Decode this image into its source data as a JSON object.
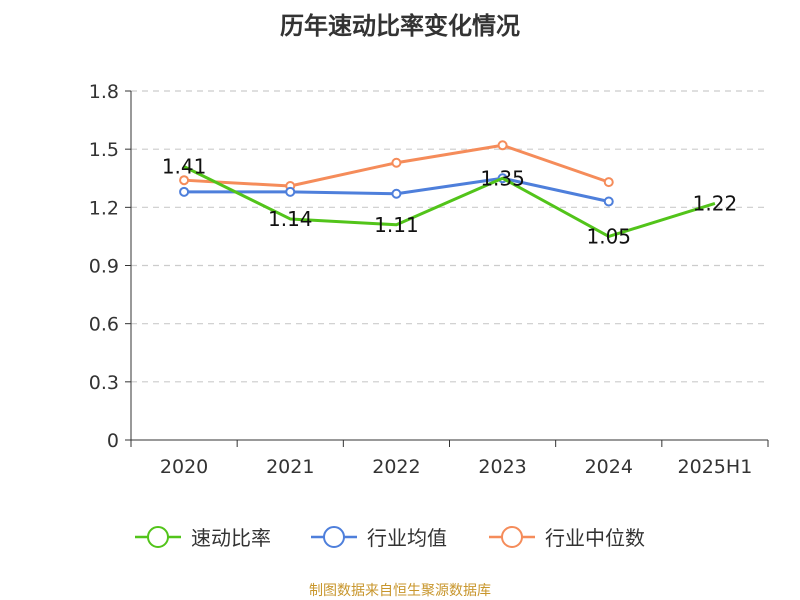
{
  "chart_data": {
    "type": "line",
    "title": "历年速动比率变化情况",
    "categories": [
      "2020",
      "2021",
      "2022",
      "2023",
      "2024",
      "2025H1"
    ],
    "ylim": [
      0,
      1.8
    ],
    "yticks": [
      "0",
      "0.3",
      "0.6",
      "0.9",
      "1.2",
      "1.5",
      "1.8"
    ],
    "grid": true,
    "legend_position": "bottom",
    "series": [
      {
        "name": "速动比率",
        "color": "#52c41a",
        "values": [
          1.41,
          1.14,
          1.11,
          1.35,
          1.05,
          1.22
        ],
        "labels": [
          "1.41",
          "1.14",
          "1.11",
          "1.35",
          "1.05",
          "1.22"
        ]
      },
      {
        "name": "行业均值",
        "color": "#4e7fdb",
        "values": [
          1.28,
          1.28,
          1.27,
          1.35,
          1.23,
          null
        ]
      },
      {
        "name": "行业中位数",
        "color": "#f58c5a",
        "values": [
          1.34,
          1.31,
          1.43,
          1.52,
          1.33,
          null
        ]
      }
    ]
  },
  "source": "制图数据来自恒生聚源数据库"
}
